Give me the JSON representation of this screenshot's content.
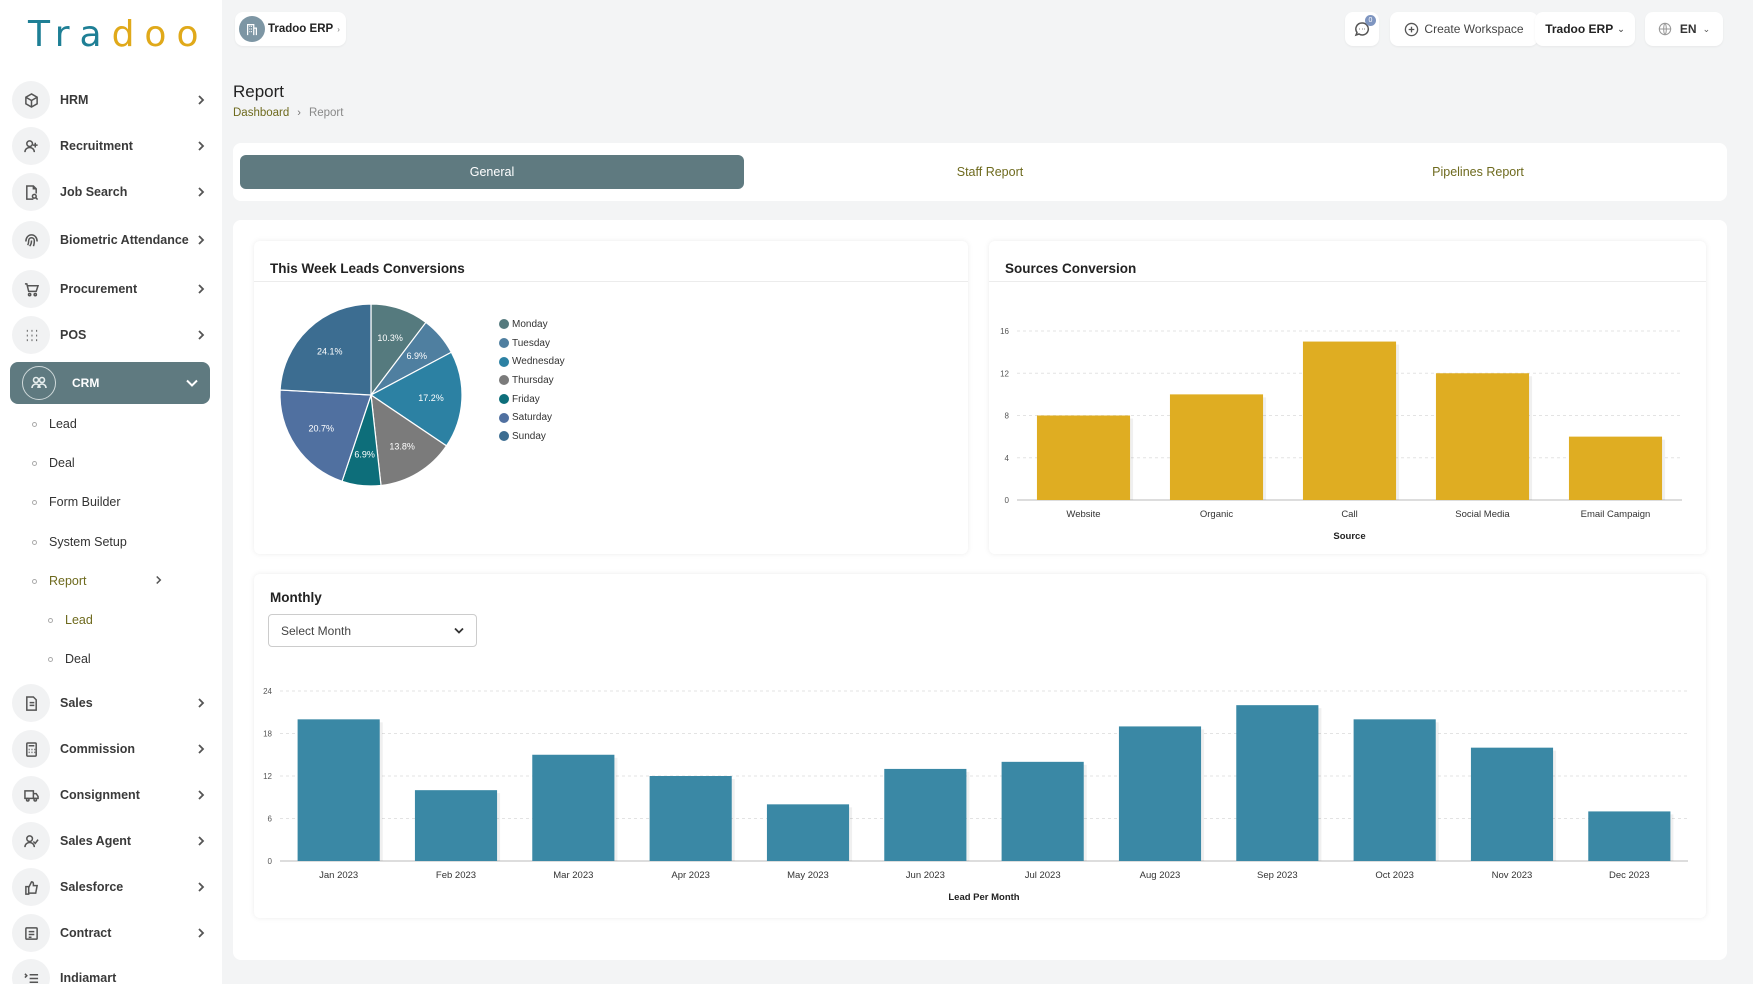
{
  "brand": {
    "logo_part1": "Tra",
    "logo_part2": "doo"
  },
  "sidebar": {
    "items": [
      {
        "label": "HRM",
        "icon": "cube-icon"
      },
      {
        "label": "Recruitment",
        "icon": "user-plus-icon"
      },
      {
        "label": "Job Search",
        "icon": "document-search-icon"
      },
      {
        "label": "Biometric Attendance",
        "icon": "fingerprint-icon"
      },
      {
        "label": "Procurement",
        "icon": "cart-icon"
      },
      {
        "label": "POS",
        "icon": "grid-icon"
      }
    ],
    "crm": {
      "label": "CRM",
      "icon": "crm-icon"
    },
    "crm_sub": [
      {
        "label": "Lead"
      },
      {
        "label": "Deal"
      },
      {
        "label": "Form Builder"
      },
      {
        "label": "System Setup"
      },
      {
        "label": "Report"
      }
    ],
    "report_sub": [
      {
        "label": "Lead"
      },
      {
        "label": "Deal"
      }
    ],
    "items_bottom": [
      {
        "label": "Sales",
        "icon": "file-icon"
      },
      {
        "label": "Commission",
        "icon": "calculator-icon"
      },
      {
        "label": "Consignment",
        "icon": "truck-icon"
      },
      {
        "label": "Sales Agent",
        "icon": "user-check-icon"
      },
      {
        "label": "Salesforce",
        "icon": "thumbs-up-icon"
      },
      {
        "label": "Contract",
        "icon": "contract-icon"
      },
      {
        "label": "Indiamart",
        "icon": "list-icon"
      }
    ]
  },
  "topbar": {
    "workspace_label": "Tradoo ERP",
    "create_workspace_label": "Create Workspace",
    "user_label": "Tradoo ERP",
    "language_label": "EN",
    "notification_count": "0"
  },
  "page": {
    "title": "Report",
    "breadcrumb_home": "Dashboard",
    "breadcrumb_current": "Report"
  },
  "tabs": [
    {
      "label": "General",
      "active": true
    },
    {
      "label": "Staff Report",
      "active": false
    },
    {
      "label": "Pipelines Report",
      "active": false
    }
  ],
  "panels": {
    "week_title": "This Week Leads Conversions",
    "sources_title": "Sources Conversion",
    "monthly_title": "Monthly",
    "select_month_label": "Select Month"
  },
  "chart_data": [
    {
      "type": "pie",
      "title": "This Week Leads Conversions",
      "labels": [
        "Monday",
        "Tuesday",
        "Wednesday",
        "Thursday",
        "Friday",
        "Saturday",
        "Sunday"
      ],
      "values": [
        10.3,
        6.9,
        17.2,
        13.8,
        6.9,
        20.7,
        24.1
      ],
      "value_labels": [
        "10.3%",
        "6.9%",
        "17.2%",
        "13.8%",
        "6.9%",
        "20.7%",
        "24.1%"
      ],
      "colors": [
        "#557a7e",
        "#4f7fa0",
        "#2c81a3",
        "#7b7b7b",
        "#0d6e7a",
        "#5070a0",
        "#3c6d91"
      ],
      "legend": "right"
    },
    {
      "type": "bar",
      "title": "Sources Conversion",
      "categories": [
        "Website",
        "Organic",
        "Call",
        "Social Media",
        "Email Campaign"
      ],
      "values": [
        8,
        10,
        15,
        12,
        6
      ],
      "xlabel": "Source",
      "ylim": [
        0,
        16
      ],
      "yticks": [
        "0",
        "4",
        "8",
        "12",
        "16"
      ],
      "color": "#dfad22",
      "grid": true
    },
    {
      "type": "bar",
      "title": "Monthly",
      "categories": [
        "Jan 2023",
        "Feb 2023",
        "Mar 2023",
        "Apr 2023",
        "May 2023",
        "Jun 2023",
        "Jul 2023",
        "Aug 2023",
        "Sep 2023",
        "Oct 2023",
        "Nov 2023",
        "Dec 2023"
      ],
      "values": [
        20,
        10,
        15,
        12,
        8,
        13,
        14,
        19,
        22,
        20,
        16,
        7
      ],
      "xlabel": "Lead Per Month",
      "ylim": [
        0,
        24
      ],
      "yticks": [
        "0",
        "6",
        "12",
        "18",
        "24"
      ],
      "color": "#3a88a5",
      "grid": true
    }
  ]
}
